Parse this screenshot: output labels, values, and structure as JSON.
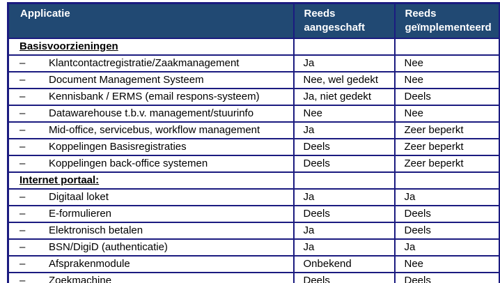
{
  "table": {
    "bullet": "–",
    "columns": [
      "Applicatie",
      "Reeds aangeschaft",
      "Reeds geïmplementeerd"
    ],
    "rows": [
      {
        "type": "section",
        "label": "Basisvoorzieningen",
        "acquired": "",
        "implemented": ""
      },
      {
        "type": "item",
        "label": "Klantcontactregistratie/Zaakmanagement",
        "acquired": "Ja",
        "implemented": "Nee"
      },
      {
        "type": "item",
        "label": "Document Management Systeem",
        "acquired": "Nee, wel gedekt",
        "implemented": "Nee"
      },
      {
        "type": "item",
        "label": "Kennisbank / ERMS (email respons-systeem)",
        "acquired": "Ja, niet gedekt",
        "implemented": "Deels"
      },
      {
        "type": "item",
        "label": "Datawarehouse t.b.v. management/stuurinfo",
        "acquired": "Nee",
        "implemented": "Nee"
      },
      {
        "type": "item",
        "label": "Mid-office, servicebus, workflow management",
        "acquired": "Ja",
        "implemented": "Zeer beperkt"
      },
      {
        "type": "item",
        "label": "Koppelingen Basisregistraties",
        "acquired": "Deels",
        "implemented": "Zeer beperkt"
      },
      {
        "type": "item",
        "label": "Koppelingen back-office systemen",
        "acquired": "Deels",
        "implemented": "Zeer beperkt"
      },
      {
        "type": "section",
        "label": "Internet portaal:",
        "acquired": "",
        "implemented": ""
      },
      {
        "type": "item",
        "label": "Digitaal loket",
        "acquired": "Ja",
        "implemented": "Ja"
      },
      {
        "type": "item",
        "label": "E-formulieren",
        "acquired": "Deels",
        "implemented": "Deels"
      },
      {
        "type": "item",
        "label": "Elektronisch betalen",
        "acquired": "Ja",
        "implemented": "Deels"
      },
      {
        "type": "item",
        "label": "BSN/DigiD (authenticatie)",
        "acquired": "Ja",
        "implemented": "Ja"
      },
      {
        "type": "item",
        "label": "Afsprakenmodule",
        "acquired": "Onbekend",
        "implemented": "Nee"
      },
      {
        "type": "item",
        "label": "Zoekmachine",
        "acquired": "Deels",
        "implemented": "Deels"
      }
    ]
  },
  "colors": {
    "header_bg": "#214973",
    "border": "#1B1B80",
    "header_text": "#FFFFFF",
    "body_text": "#000000",
    "page_bg": "#FFFFFF"
  }
}
